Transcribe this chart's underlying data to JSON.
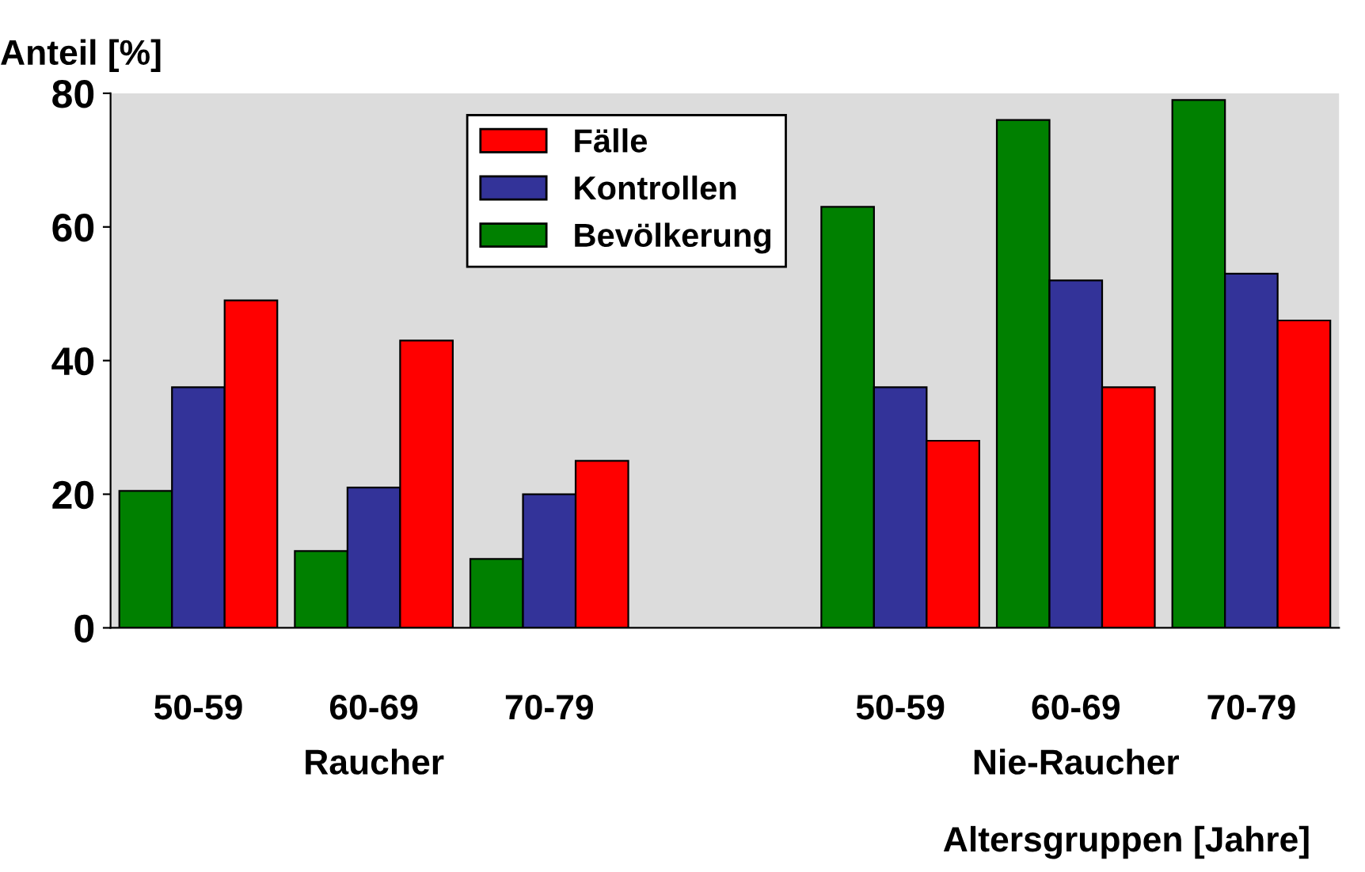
{
  "chart_data": {
    "type": "bar",
    "ylabel": "Anteil [%]",
    "xlabel": "Altersgruppen [Jahre]",
    "categories": [
      "50-59",
      "60-69",
      "70-79",
      null,
      "50-59",
      "60-69",
      "70-79"
    ],
    "series": [
      {
        "name": "Bevölkerung",
        "color": "#008000",
        "values": [
          20.5,
          11.5,
          10.3,
          null,
          63,
          76,
          79
        ]
      },
      {
        "name": "Kontrollen",
        "color": "#333399",
        "values": [
          36,
          21,
          20,
          null,
          36,
          52,
          53
        ]
      },
      {
        "name": "Fälle",
        "color": "#ff0000",
        "values": [
          49,
          43,
          25,
          null,
          28,
          36,
          46
        ]
      }
    ],
    "ylim": [
      0,
      80
    ],
    "yticks": [
      0,
      20,
      40,
      60,
      80
    ],
    "grid": false,
    "legend": "top",
    "annotations": [
      "Raucher",
      "Nie-Raucher"
    ]
  }
}
